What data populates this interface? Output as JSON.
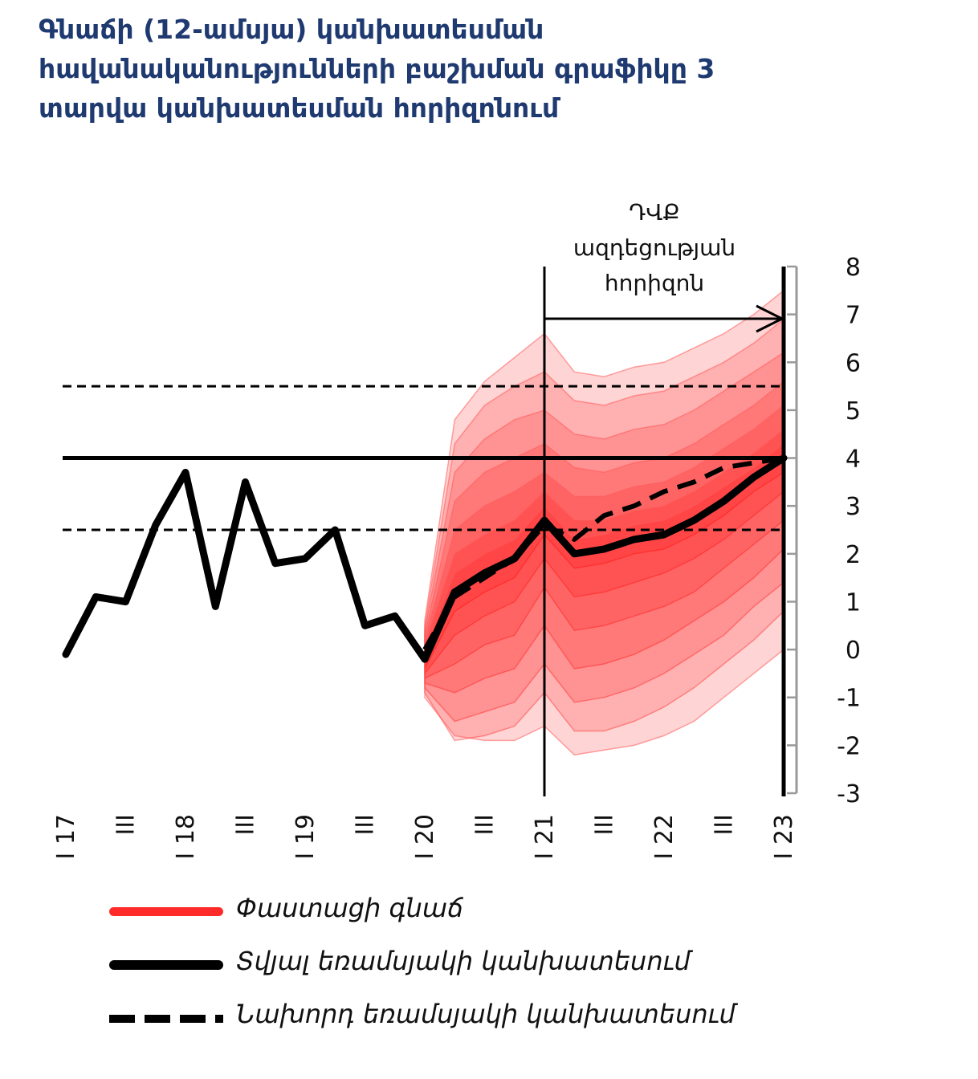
{
  "title_lines": [
    "Գնաճի (12-ամսյա) կանխատեսման",
    "հավանականությունների բաշխման գրաֆիկը 3",
    "տարվա կանխատեսման հորիզոնում"
  ],
  "annotation_lines": [
    "ԴՎՔ",
    "ազդեցության",
    "հորիզոն"
  ],
  "legend": [
    {
      "label": "Փաստացի գնաճ",
      "style": "red-line"
    },
    {
      "label": "Տվյալ եռամսյակի կանխատեսում",
      "style": "solid-black"
    },
    {
      "label": "Նախորդ եռամսյակի կանխատեսում",
      "style": "dashed-black"
    }
  ],
  "colors": {
    "title": "#1f3a70",
    "fan": "#ff0000",
    "line": "#000000",
    "axis": "#999999"
  },
  "chart_data": {
    "type": "line",
    "x_tick_labels": [
      "I 17",
      "III",
      "I 18",
      "III",
      "I 19",
      "III",
      "I 20",
      "III",
      "I 21",
      "III",
      "I 22",
      "III",
      "I 23"
    ],
    "y_ticks": [
      "8",
      "7",
      "6",
      "5",
      "4",
      "3",
      "2",
      "1",
      "0",
      "-1",
      "-2",
      "-3"
    ],
    "ylim": [
      -3,
      8
    ],
    "y_axis_position": "right",
    "target": 4.0,
    "tolerance_band": [
      2.5,
      5.5
    ],
    "policy_horizon": {
      "from_quarter": 16,
      "to_quarter": 24
    },
    "actual_inflation": {
      "x": [
        0,
        1,
        2,
        3,
        4,
        5,
        6,
        7,
        8,
        9,
        10,
        11,
        12,
        13
      ],
      "values": [
        -0.1,
        1.1,
        1.0,
        2.6,
        3.7,
        0.9,
        3.5,
        1.8,
        1.9,
        2.5,
        0.5,
        0.7,
        -0.2,
        1.2
      ]
    },
    "current_forecast": {
      "x": [
        12,
        13,
        14,
        15,
        16,
        17,
        18,
        19,
        20,
        21,
        22,
        23,
        24
      ],
      "values": [
        -0.2,
        1.2,
        1.6,
        1.9,
        2.7,
        2.0,
        2.1,
        2.3,
        2.4,
        2.7,
        3.1,
        3.6,
        4.0
      ]
    },
    "previous_forecast": {
      "x": [
        12,
        13,
        14,
        15,
        16,
        17,
        18,
        19,
        20,
        21,
        22,
        23,
        24
      ],
      "values": [
        0.0,
        1.1,
        1.5,
        1.9,
        2.6,
        2.3,
        2.8,
        3.0,
        3.3,
        3.5,
        3.8,
        3.9,
        4.0
      ]
    },
    "fan_bands": {
      "x": [
        12,
        13,
        14,
        15,
        16,
        17,
        18,
        19,
        20,
        21,
        22,
        23,
        24
      ],
      "upper": [
        [
          0.6,
          4.8,
          5.6,
          6.1,
          6.6,
          5.8,
          5.7,
          5.9,
          6.0,
          6.3,
          6.6,
          7.0,
          7.5
        ],
        [
          0.5,
          4.3,
          5.1,
          5.5,
          5.8,
          5.2,
          5.1,
          5.3,
          5.4,
          5.7,
          6.0,
          6.4,
          6.9
        ],
        [
          0.4,
          3.7,
          4.4,
          4.8,
          5.0,
          4.5,
          4.4,
          4.6,
          4.7,
          5.0,
          5.4,
          5.8,
          6.2
        ],
        [
          0.3,
          3.1,
          3.7,
          4.0,
          4.3,
          3.8,
          3.7,
          3.9,
          4.0,
          4.3,
          4.7,
          5.1,
          5.6
        ],
        [
          0.2,
          2.5,
          3.0,
          3.3,
          3.7,
          3.2,
          3.2,
          3.4,
          3.5,
          3.8,
          4.2,
          4.6,
          5.1
        ],
        [
          0.1,
          2.0,
          2.4,
          2.7,
          3.3,
          2.7,
          2.7,
          2.9,
          3.0,
          3.3,
          3.7,
          4.1,
          4.6
        ],
        [
          0.0,
          1.6,
          2.0,
          2.3,
          3.0,
          2.3,
          2.4,
          2.6,
          2.7,
          3.0,
          3.4,
          3.8,
          4.3
        ]
      ],
      "lower": [
        [
          -0.4,
          0.8,
          1.2,
          1.5,
          2.4,
          1.7,
          1.8,
          2.0,
          2.1,
          2.4,
          2.8,
          3.3,
          3.7
        ],
        [
          -0.5,
          0.3,
          0.7,
          1.0,
          1.9,
          1.1,
          1.2,
          1.4,
          1.6,
          1.9,
          2.3,
          2.8,
          3.3
        ],
        [
          -0.6,
          -0.3,
          0.1,
          0.3,
          1.3,
          0.4,
          0.5,
          0.7,
          0.9,
          1.2,
          1.7,
          2.2,
          2.7
        ],
        [
          -0.7,
          -0.9,
          -0.6,
          -0.4,
          0.5,
          -0.4,
          -0.3,
          -0.1,
          0.2,
          0.6,
          1.0,
          1.5,
          2.1
        ],
        [
          -0.8,
          -1.5,
          -1.3,
          -1.1,
          -0.3,
          -1.1,
          -1.0,
          -0.8,
          -0.5,
          -0.1,
          0.3,
          0.9,
          1.4
        ],
        [
          -0.9,
          -1.9,
          -1.8,
          -1.6,
          -0.9,
          -1.7,
          -1.7,
          -1.5,
          -1.2,
          -0.8,
          -0.3,
          0.2,
          0.8
        ],
        [
          -1.0,
          -1.8,
          -1.9,
          -1.9,
          -1.6,
          -2.2,
          -2.1,
          -2.0,
          -1.8,
          -1.5,
          -1.0,
          -0.5,
          0.0
        ]
      ]
    }
  }
}
